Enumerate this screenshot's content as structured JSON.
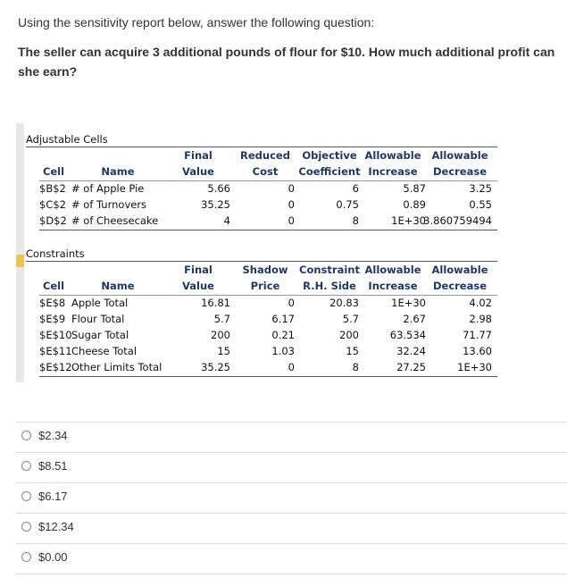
{
  "question": {
    "intro": "Using the sensitivity report below, answer the following question:",
    "text": "The seller can acquire 3 additional pounds of flour for $10. How much additional profit can she earn?"
  },
  "report": {
    "adjustable": {
      "title": "Adjustable Cells",
      "headers": [
        [
          "Cell"
        ],
        [
          "Name"
        ],
        [
          "Final",
          "Value"
        ],
        [
          "Reduced",
          "Cost"
        ],
        [
          "Objective",
          "Coefficient"
        ],
        [
          "Allowable",
          "Increase"
        ],
        [
          "Allowable",
          "Decrease"
        ]
      ],
      "rows": [
        [
          "$B$2",
          "# of Apple Pie",
          "5.66",
          "0",
          "6",
          "5.87",
          "3.25"
        ],
        [
          "$C$2",
          "# of Turnovers",
          "35.25",
          "0",
          "0.75",
          "0.89",
          "0.55"
        ],
        [
          "$D$2",
          "# of Cheesecake",
          "4",
          "0",
          "8",
          "1E+30",
          "3.860759494"
        ]
      ]
    },
    "constraints": {
      "title": "Constraints",
      "headers": [
        [
          "Cell"
        ],
        [
          "Name"
        ],
        [
          "Final",
          "Value"
        ],
        [
          "Shadow",
          "Price"
        ],
        [
          "Constraint",
          "R.H. Side"
        ],
        [
          "Allowable",
          "Increase"
        ],
        [
          "Allowable",
          "Decrease"
        ]
      ],
      "rows": [
        [
          "$E$8",
          "Apple Total",
          "16.81",
          "0",
          "20.83",
          "1E+30",
          "4.02"
        ],
        [
          "$E$9",
          "Flour Total",
          "5.7",
          "6.17",
          "5.7",
          "2.67",
          "2.98"
        ],
        [
          "$E$10",
          "Sugar Total",
          "200",
          "0.21",
          "200",
          "63.534",
          "71.77"
        ],
        [
          "$E$11",
          "Cheese Total",
          "15",
          "1.03",
          "15",
          "32.24",
          "13.60"
        ],
        [
          "$E$12",
          "Other Limits Total",
          "35.25",
          "0",
          "8",
          "27.25",
          "1E+30"
        ]
      ]
    }
  },
  "options": [
    "$2.34",
    "$8.51",
    "$6.17",
    "$12.34",
    "$0.00"
  ]
}
